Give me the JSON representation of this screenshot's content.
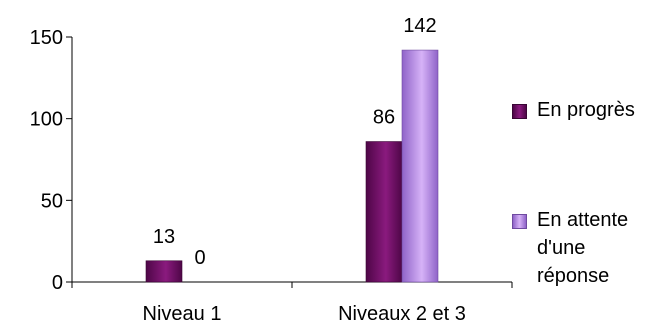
{
  "chart_data": {
    "type": "bar",
    "categories": [
      "Niveau 1",
      "Niveaux 2 et 3"
    ],
    "series": [
      {
        "name": "En progrès",
        "values": [
          13,
          86
        ],
        "color": "#7a0f6e"
      },
      {
        "name": "En attente d'une réponse",
        "values": [
          0,
          142
        ],
        "color": "#b98ae6"
      }
    ],
    "ylim": [
      0,
      150
    ],
    "yticks": [
      0,
      50,
      100,
      150
    ],
    "legend_position": "right",
    "grid": false
  },
  "legend": {
    "item1": "En progrès",
    "item2_line1": "En attente",
    "item2_line2": "d'une",
    "item2_line3": "réponse"
  }
}
